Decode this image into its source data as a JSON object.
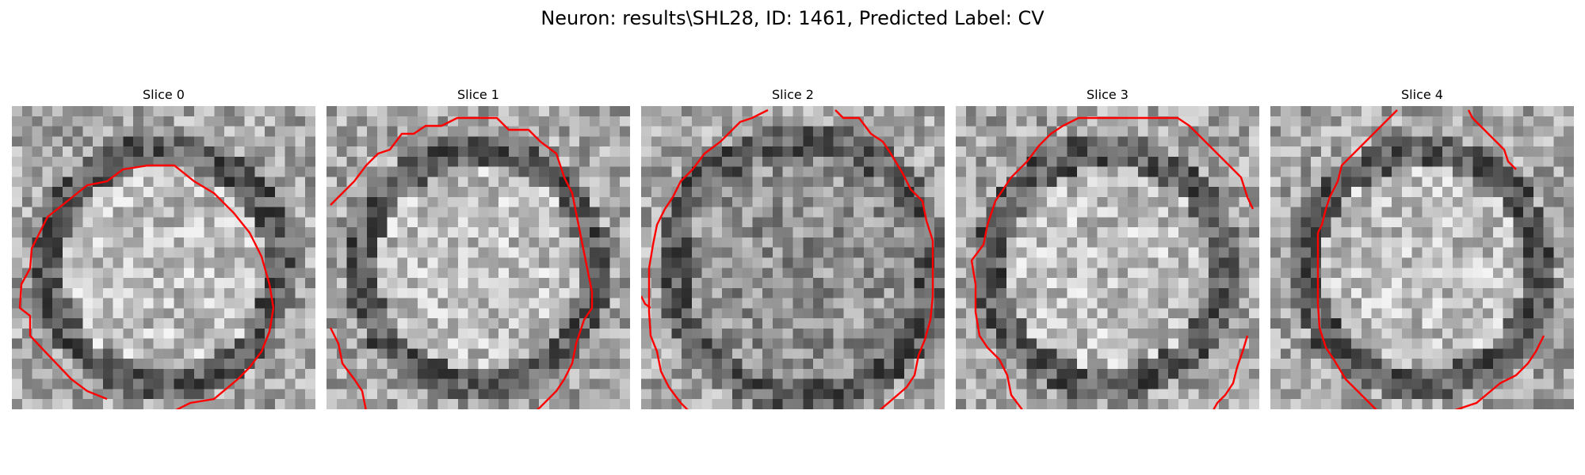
{
  "figure": {
    "title": "Neuron: results\\SHL28, ID: 1461, Predicted Label: CV",
    "contour_color": "#ff0000",
    "colormap": "gray",
    "panels": [
      {
        "title": "Slice 0"
      },
      {
        "title": "Slice 1"
      },
      {
        "title": "Slice 2"
      },
      {
        "title": "Slice 3"
      },
      {
        "title": "Slice 4"
      }
    ]
  }
}
